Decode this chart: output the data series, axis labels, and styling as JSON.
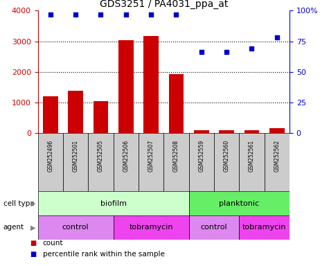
{
  "title": "GDS3251 / PA4031_ppa_at",
  "samples": [
    "GSM252496",
    "GSM252501",
    "GSM252505",
    "GSM252506",
    "GSM252507",
    "GSM252508",
    "GSM252559",
    "GSM252560",
    "GSM252561",
    "GSM252562"
  ],
  "counts": [
    1190,
    1380,
    1040,
    3040,
    3170,
    1920,
    80,
    100,
    90,
    150
  ],
  "percentile_ranks": [
    97,
    97,
    97,
    97,
    97,
    97,
    66,
    66,
    69,
    78
  ],
  "ylim_left": [
    0,
    4000
  ],
  "ylim_right": [
    0,
    100
  ],
  "yticks_left": [
    0,
    1000,
    2000,
    3000,
    4000
  ],
  "ytick_labels_left": [
    "0",
    "1000",
    "2000",
    "3000",
    "4000"
  ],
  "ytick_vals_right": [
    0,
    25,
    50,
    75,
    100
  ],
  "ytick_labels_right": [
    "0",
    "25",
    "50",
    "75",
    "100%"
  ],
  "bar_color": "#cc0000",
  "dot_color": "#0000cc",
  "cell_type_row": [
    {
      "label": "biofilm",
      "span": [
        0,
        5
      ],
      "color": "#ccffcc"
    },
    {
      "label": "planktonic",
      "span": [
        6,
        9
      ],
      "color": "#66ee66"
    }
  ],
  "agent_row": [
    {
      "label": "control",
      "span": [
        0,
        2
      ],
      "color": "#dd88ee"
    },
    {
      "label": "tobramycin",
      "span": [
        3,
        5
      ],
      "color": "#ee44ee"
    },
    {
      "label": "control",
      "span": [
        6,
        7
      ],
      "color": "#dd88ee"
    },
    {
      "label": "tobramycin",
      "span": [
        8,
        9
      ],
      "color": "#ee44ee"
    }
  ],
  "row_labels": [
    "cell type",
    "agent"
  ],
  "legend_items": [
    "count",
    "percentile rank within the sample"
  ],
  "tick_color_left": "#cc0000",
  "tick_color_right": "#0000cc",
  "sample_bg_color": "#cccccc",
  "border_color": "#000000"
}
